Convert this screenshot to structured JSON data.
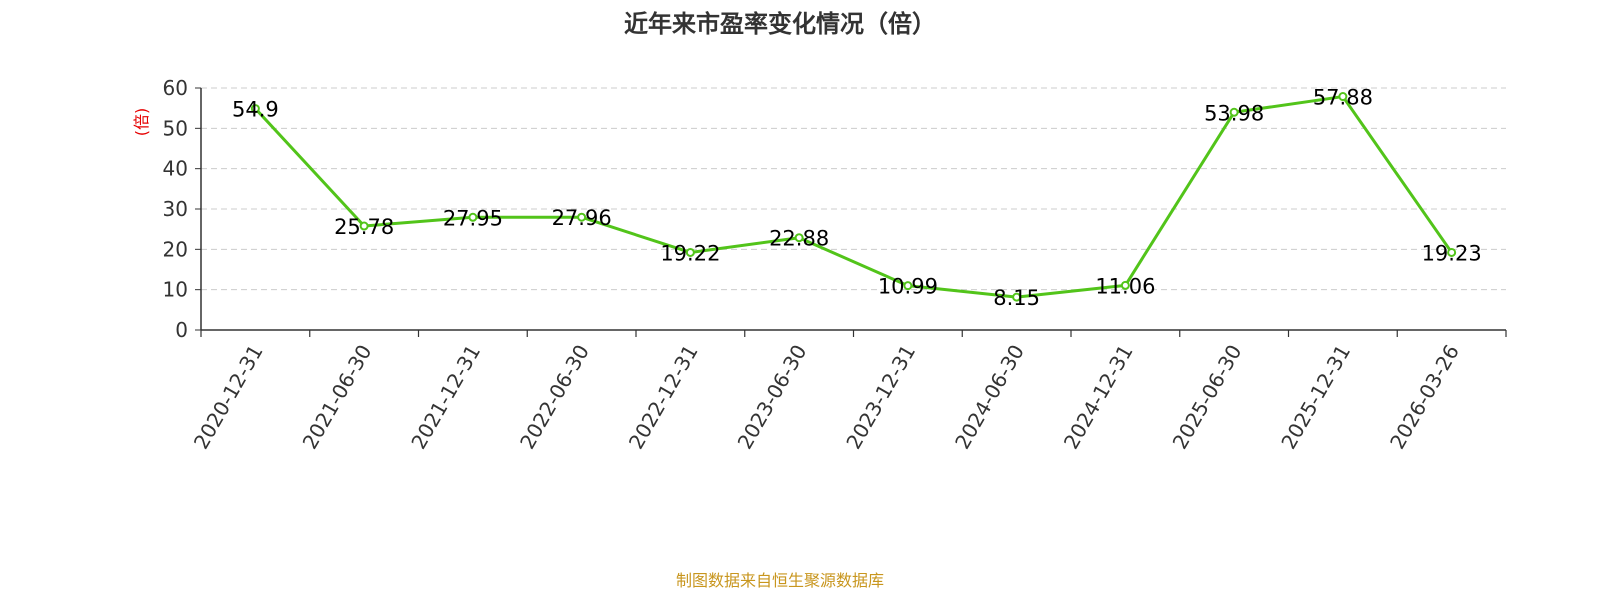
{
  "source_note": "制图数据来自恒生聚源数据库",
  "chart_data": {
    "type": "line",
    "title": "近年来市盈率变化情况（倍）",
    "ylabel": "(倍)",
    "xlabel": "",
    "ylim": [
      0,
      60
    ],
    "yticks": [
      0,
      10,
      20,
      30,
      40,
      50,
      60
    ],
    "grid": true,
    "categories": [
      "2020-12-31",
      "2021-06-30",
      "2021-12-31",
      "2022-06-30",
      "2022-12-31",
      "2023-06-30",
      "2023-12-31",
      "2024-06-30",
      "2024-12-31",
      "2025-06-30",
      "2025-12-31",
      "2026-03-26"
    ],
    "series": [
      {
        "values": [
          54.9,
          25.78,
          27.95,
          27.96,
          19.22,
          22.88,
          10.99,
          8.15,
          11.06,
          53.98,
          57.88,
          19.23
        ],
        "labels": [
          "54.9",
          "25.78",
          "27.95",
          "27.96",
          "19.22",
          "22.88",
          "10.99",
          "8.15",
          "11.06",
          "53.98",
          "57.88",
          "19.23"
        ]
      }
    ],
    "colors": {
      "line": "#52c41a",
      "axis": "#333333",
      "grid": "#cccccc",
      "ylabel": "#e60000",
      "text": "#000000"
    }
  }
}
